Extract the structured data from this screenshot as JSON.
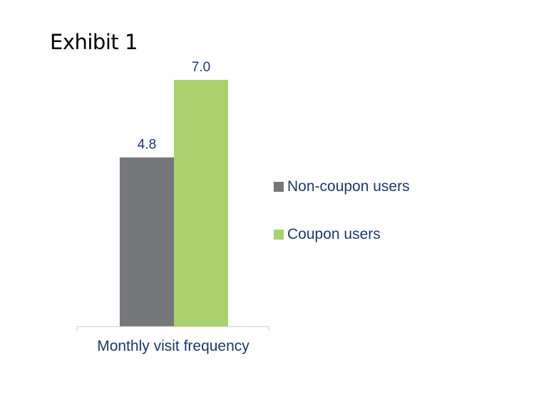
{
  "title": "Exhibit 1",
  "chart_data": {
    "type": "bar",
    "categories": [
      "Monthly visit frequency"
    ],
    "series": [
      {
        "name": "Non-coupon users",
        "values": [
          4.8
        ],
        "labels": [
          "4.8"
        ],
        "color": "#76777b"
      },
      {
        "name": "Coupon users",
        "values": [
          7.0
        ],
        "labels": [
          "7.0"
        ],
        "color": "#a9d16e"
      }
    ],
    "ylim": [
      0,
      7.0
    ],
    "grid": false,
    "y_axis_visible": false,
    "legend_position": "right",
    "label_color": "#1f3864",
    "axis_color": "#c8c8c8"
  }
}
